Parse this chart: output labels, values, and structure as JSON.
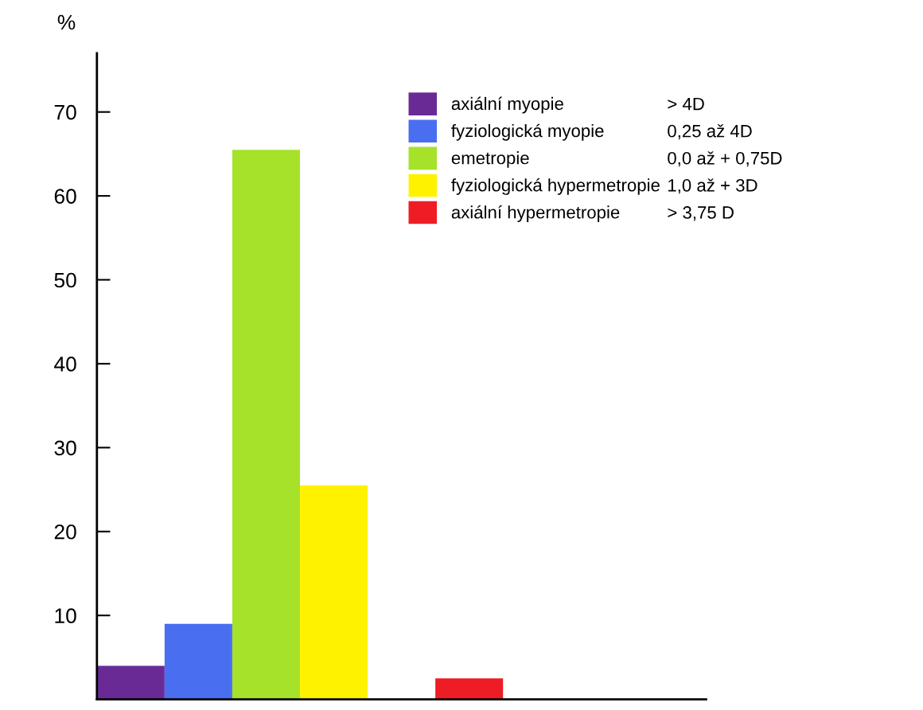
{
  "chart_data": {
    "type": "bar",
    "ylabel": "%",
    "categories": [
      null,
      null,
      null,
      null,
      null,
      null,
      null,
      null,
      null
    ],
    "series": [
      {
        "name": "axiální myopie",
        "color": "#6a2a96",
        "values": [
          4.0,
          null,
          null,
          null,
          null,
          null,
          null,
          null,
          null
        ]
      },
      {
        "name": "fyziologická myopie",
        "color": "#4a6ef0",
        "values": [
          null,
          9.0,
          null,
          null,
          null,
          null,
          null,
          null,
          null
        ]
      },
      {
        "name": "emetropie",
        "color": "#a6e22a",
        "values": [
          null,
          null,
          65.5,
          null,
          null,
          null,
          null,
          null,
          null
        ]
      },
      {
        "name": "fyziologická hypermetropie",
        "color": "#fff200",
        "values": [
          null,
          null,
          null,
          25.5,
          null,
          null,
          null,
          null,
          null
        ]
      },
      {
        "name": "axiální hypermetropie",
        "color": "#ee1c25",
        "values": [
          null,
          null,
          null,
          null,
          null,
          2.5,
          null,
          null,
          null
        ]
      }
    ],
    "annotations": [
      "> 4D",
      "0,25 až 4D",
      "0,0 až + 0,75D",
      "1,0 až + 3D",
      "> 3,75 D"
    ],
    "ylim": [
      0,
      77
    ],
    "yticks": [
      10,
      20,
      30,
      40,
      50,
      60,
      70
    ],
    "grid": false,
    "legend": "top right"
  }
}
